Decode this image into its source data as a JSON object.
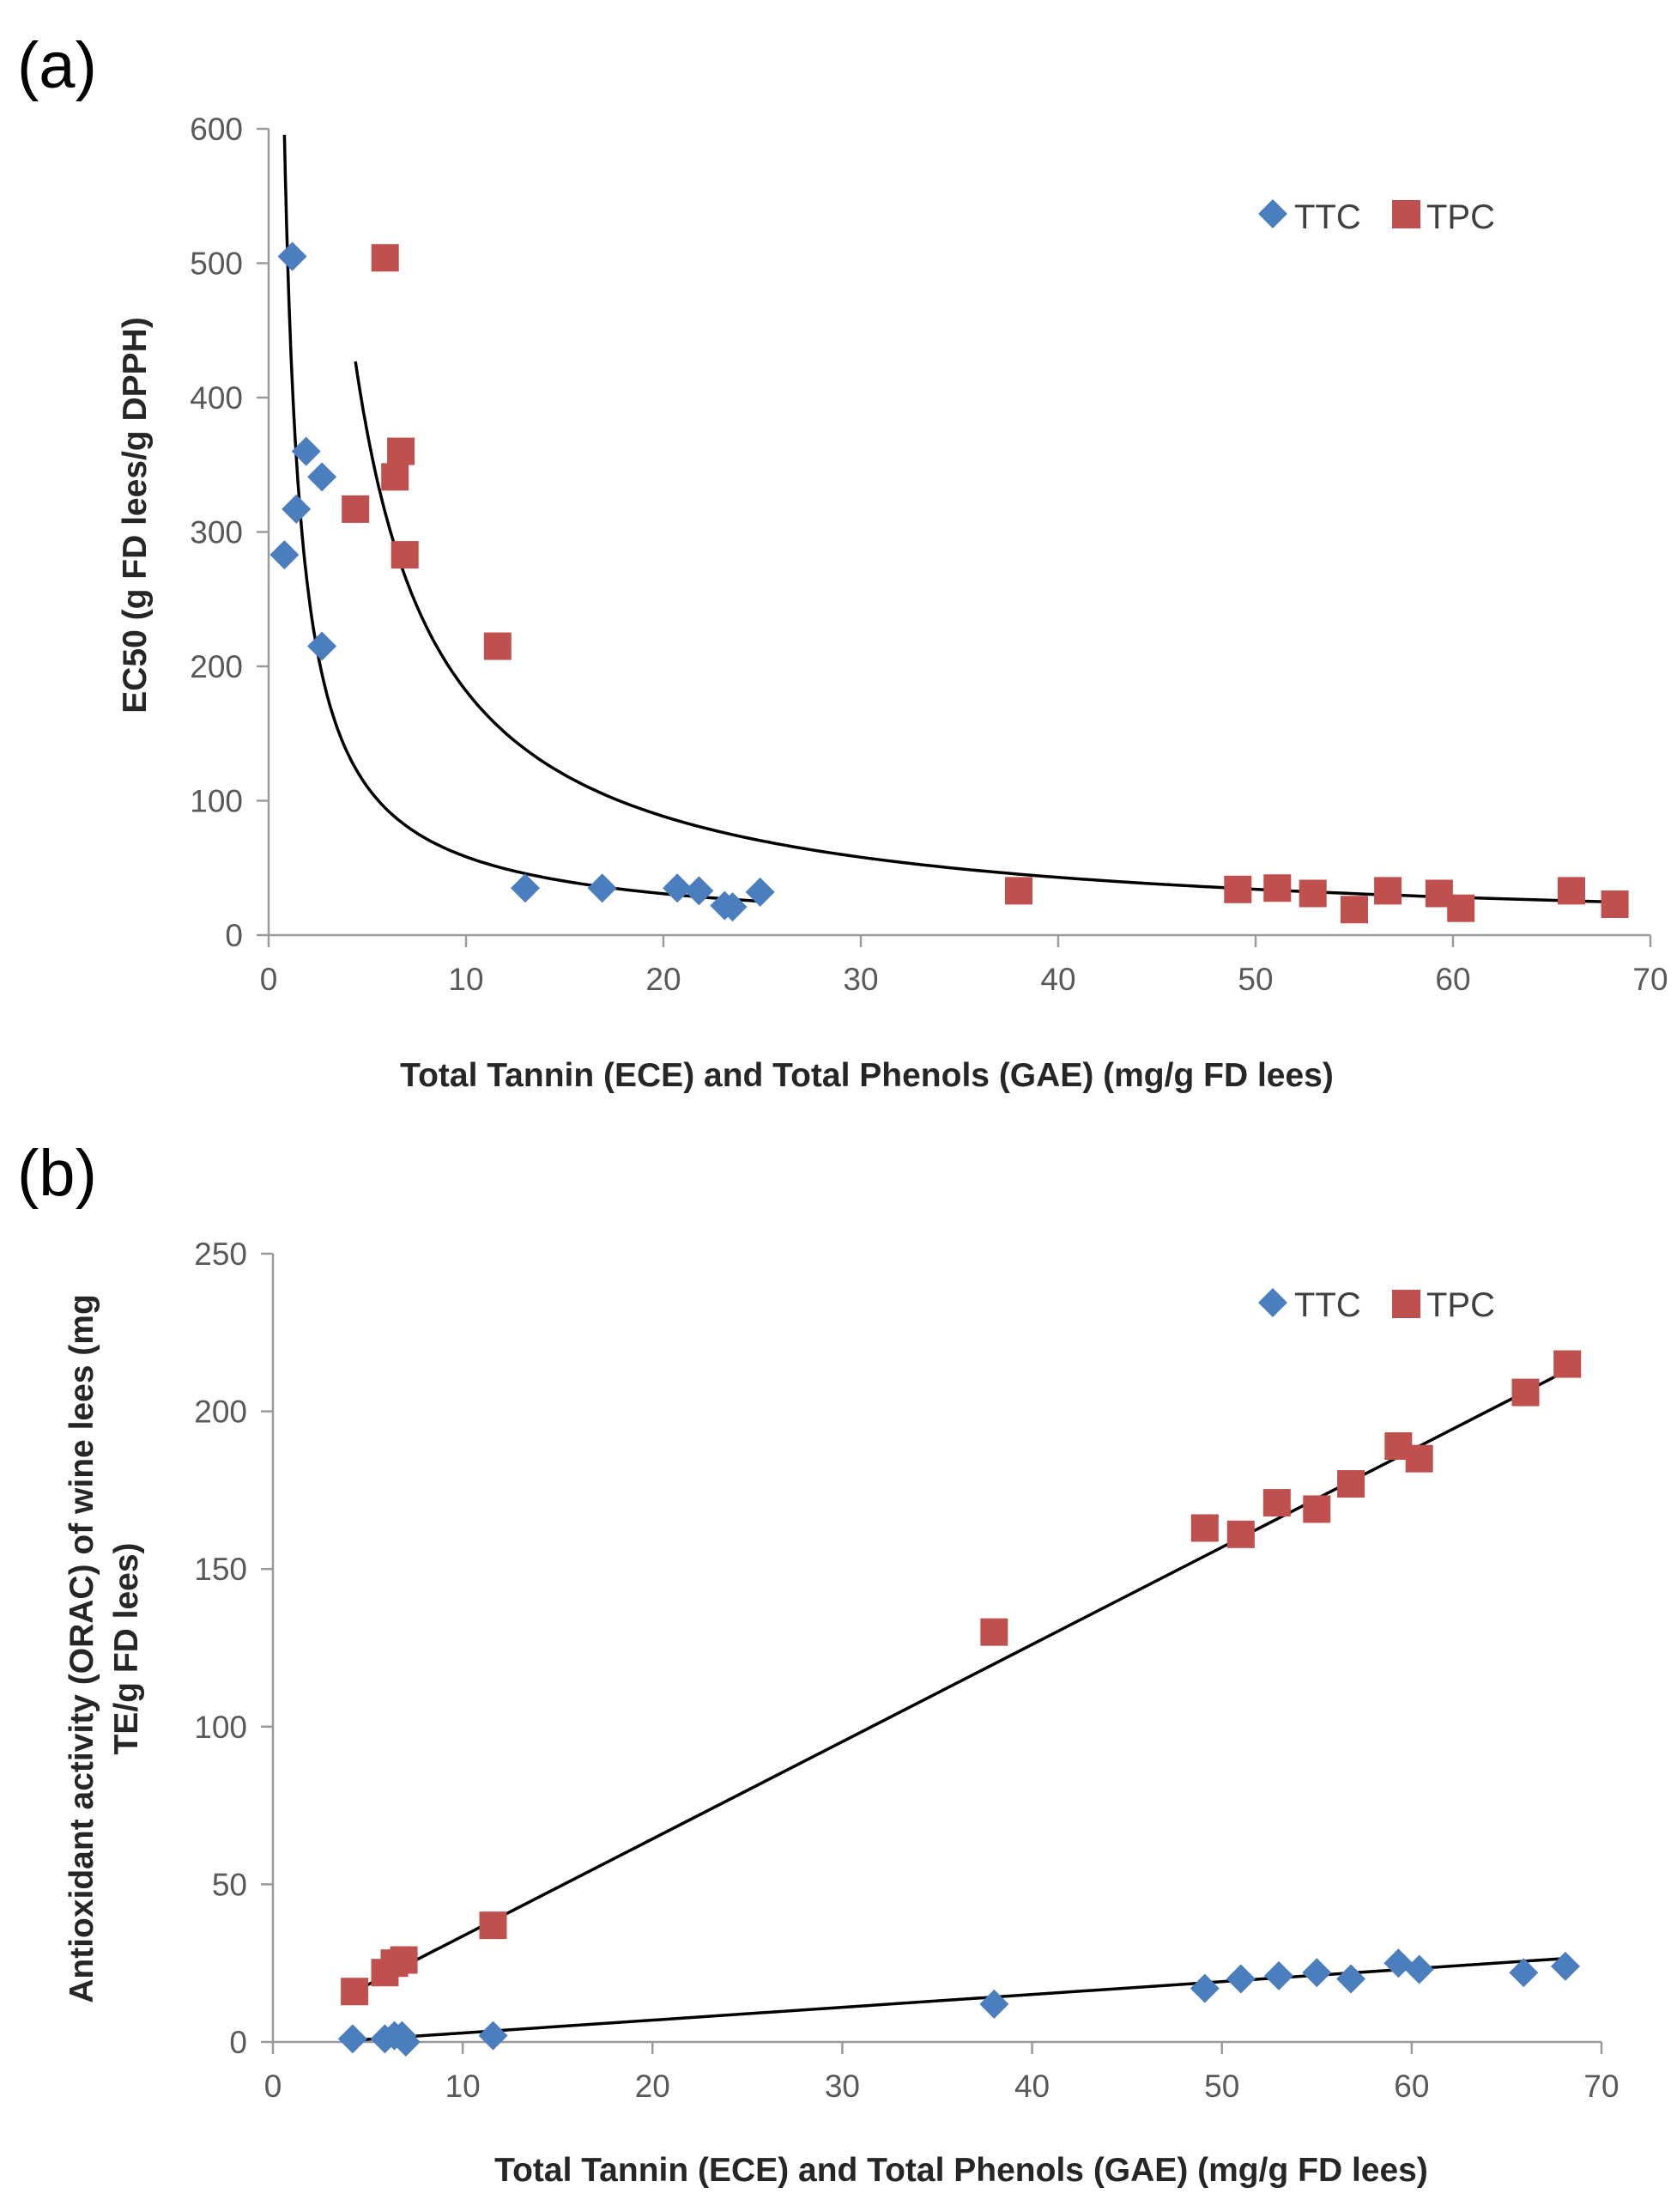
{
  "chart_data": [
    {
      "panel_label": "(a)",
      "type": "scatter",
      "xlabel": "Total Tannin (ECE) and Total Phenols (GAE) (mg/g FD lees)",
      "ylabel": "EC50 (g  FD lees/g DPPH)",
      "xlim": [
        0,
        70
      ],
      "ylim": [
        0,
        600
      ],
      "xticks": [
        "0",
        "10",
        "20",
        "30",
        "40",
        "50",
        "60",
        "70"
      ],
      "yticks": [
        "0",
        "100",
        "200",
        "300",
        "400",
        "500",
        "600"
      ],
      "grid": false,
      "legend_position": "top-right",
      "series": [
        {
          "name": "TTC",
          "marker": "diamond",
          "color": "#4a7ebf",
          "x": [
            0.8,
            1.2,
            1.4,
            1.9,
            2.7,
            2.7,
            13.0,
            16.9,
            20.7,
            21.8,
            23.1,
            23.5,
            24.9
          ],
          "y": [
            283,
            505,
            317,
            360,
            341,
            215,
            35,
            35,
            35,
            33,
            22,
            21,
            32
          ],
          "fit": {
            "kind": "power",
            "a": 485,
            "b": -0.92,
            "xmin": 0.8,
            "xmax": 24.9
          }
        },
        {
          "name": "TPC",
          "marker": "square",
          "color": "#c0504d",
          "x": [
            4.4,
            5.9,
            6.4,
            6.7,
            6.9,
            11.6,
            38.0,
            49.1,
            51.1,
            52.9,
            55.0,
            56.7,
            59.3,
            60.4,
            66.0,
            68.2
          ],
          "y": [
            317,
            504,
            341,
            360,
            283,
            215,
            33,
            34,
            35,
            31,
            19,
            33,
            31,
            20,
            33,
            23
          ],
          "fit": {
            "kind": "power",
            "a": 1993,
            "b": -1.04,
            "xmin": 4.4,
            "xmax": 68.2
          }
        }
      ]
    },
    {
      "panel_label": "(b)",
      "type": "scatter",
      "xlabel": "Total Tannin (ECE) and Total Phenols (GAE) (mg/g FD lees)",
      "ylabel": [
        "Antioxidant  activity (ORAC) of wine lees (mg",
        "TE/g FD lees)"
      ],
      "xlim": [
        0,
        70
      ],
      "ylim": [
        0,
        250
      ],
      "xticks": [
        "0",
        "10",
        "20",
        "30",
        "40",
        "50",
        "60",
        "70"
      ],
      "yticks": [
        "0",
        "50",
        "100",
        "150",
        "200",
        "250"
      ],
      "grid": false,
      "legend_position": "top-right",
      "series": [
        {
          "name": "TTC",
          "marker": "diamond",
          "color": "#4a7ebf",
          "x": [
            4.2,
            5.9,
            6.4,
            6.8,
            7.0,
            11.6,
            38.0,
            49.1,
            51.0,
            53.0,
            55.0,
            56.8,
            59.3,
            60.4,
            65.9,
            68.1
          ],
          "y": [
            1,
            1,
            2,
            2,
            0,
            2,
            12,
            17,
            20,
            21,
            22,
            20,
            25,
            23,
            22,
            24
          ],
          "fit": {
            "kind": "linear",
            "x0": 4.2,
            "y0": 0.5,
            "x1": 68.1,
            "y1": 26.5
          }
        },
        {
          "name": "TPC",
          "marker": "square",
          "color": "#c0504d",
          "x": [
            4.3,
            5.9,
            6.4,
            6.9,
            11.6,
            38.0,
            49.1,
            51.0,
            52.9,
            55.0,
            56.8,
            59.3,
            60.4,
            66.0,
            68.2
          ],
          "y": [
            16,
            22,
            25,
            26,
            37,
            130,
            163,
            161,
            171,
            169,
            177,
            189,
            185,
            206,
            215
          ],
          "fit": {
            "kind": "linear",
            "x0": 4.3,
            "y0": 16,
            "x1": 68.2,
            "y1": 213
          }
        }
      ]
    }
  ]
}
